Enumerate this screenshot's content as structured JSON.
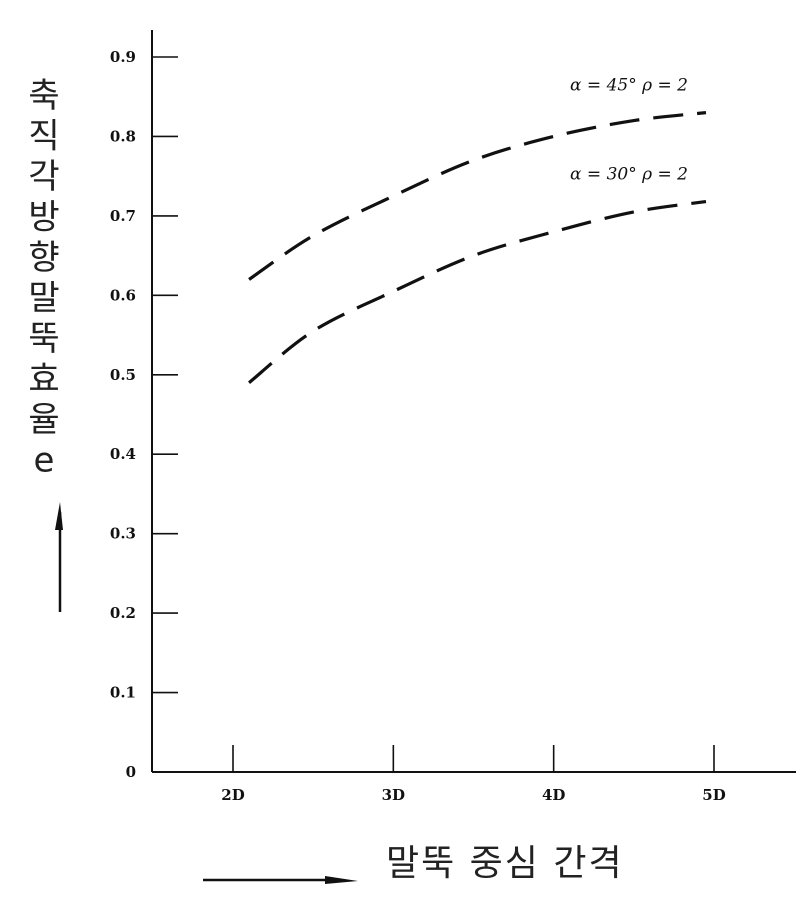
{
  "chart_data": {
    "type": "line",
    "title": "",
    "ylabel_chars": [
      "축",
      "직",
      "각",
      "방",
      "향",
      "말",
      "뚝",
      "효",
      "율",
      "e"
    ],
    "xlabel": "말뚝 중심 간격",
    "x_ticks": [
      {
        "value": 2,
        "label": "2D"
      },
      {
        "value": 3,
        "label": "3D"
      },
      {
        "value": 4,
        "label": "4D"
      },
      {
        "value": 5,
        "label": "5D"
      }
    ],
    "y_ticks": [
      {
        "value": 0,
        "label": "0"
      },
      {
        "value": 0.1,
        "label": "0.1"
      },
      {
        "value": 0.2,
        "label": "0.2"
      },
      {
        "value": 0.3,
        "label": "0.3"
      },
      {
        "value": 0.4,
        "label": "0.4"
      },
      {
        "value": 0.5,
        "label": "0.5"
      },
      {
        "value": 0.6,
        "label": "0.6"
      },
      {
        "value": 0.7,
        "label": "0.7"
      },
      {
        "value": 0.8,
        "label": "0.8"
      },
      {
        "value": 0.9,
        "label": "0.9"
      }
    ],
    "xlim": [
      1.5,
      5.5
    ],
    "ylim": [
      0,
      0.93
    ],
    "grid": false,
    "series": [
      {
        "name": "α = 45°   ρ = 2",
        "x": [
          2.1,
          2.5,
          3.0,
          3.5,
          4.0,
          4.5,
          4.95
        ],
        "y": [
          0.62,
          0.675,
          0.725,
          0.77,
          0.8,
          0.82,
          0.83
        ]
      },
      {
        "name": "α = 30°   ρ = 2",
        "x": [
          2.1,
          2.5,
          3.0,
          3.5,
          4.0,
          4.5,
          4.95
        ],
        "y": [
          0.49,
          0.555,
          0.605,
          0.65,
          0.68,
          0.705,
          0.718
        ]
      }
    ],
    "line_color": "#111111"
  }
}
